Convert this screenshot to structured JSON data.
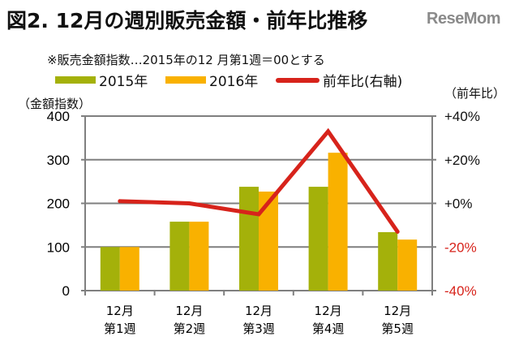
{
  "title": "図2. 12月の週別販売金額・前年比推移",
  "logo": "ReseMom",
  "note": "※販売金額指数…2015年の12 月第1週＝00とする",
  "colors": {
    "s2015": "#a4b10a",
    "s2016": "#f9b100",
    "yoy": "#d7231b",
    "grid": "#7f7f7f"
  },
  "chart_data": {
    "type": "bar+line",
    "categories": [
      [
        "12月",
        "第1週"
      ],
      [
        "12月",
        "第2週"
      ],
      [
        "12月",
        "第3週"
      ],
      [
        "12月",
        "第4週"
      ],
      [
        "12月",
        "第5週"
      ]
    ],
    "series": [
      {
        "name": "2015年",
        "type": "bar",
        "axis": "left",
        "values": [
          100,
          158,
          238,
          238,
          134
        ]
      },
      {
        "name": "2016年",
        "type": "bar",
        "axis": "left",
        "values": [
          100,
          158,
          227,
          316,
          117
        ]
      },
      {
        "name": "前年比(右軸)",
        "type": "line",
        "axis": "right",
        "values": [
          1,
          0,
          -5,
          33,
          -13
        ]
      }
    ],
    "ylabel_left": "（金額指数）",
    "ylabel_right": "（前年比）",
    "ylim_left": [
      0,
      400
    ],
    "yticks_left": [
      "0",
      "100",
      "200",
      "300",
      "400"
    ],
    "ylim_right": [
      -40,
      40
    ],
    "yticks_right": [
      "-40%",
      "-20%",
      "+0%",
      "+20%",
      "+40%"
    ],
    "grid": true,
    "legend": "top"
  }
}
